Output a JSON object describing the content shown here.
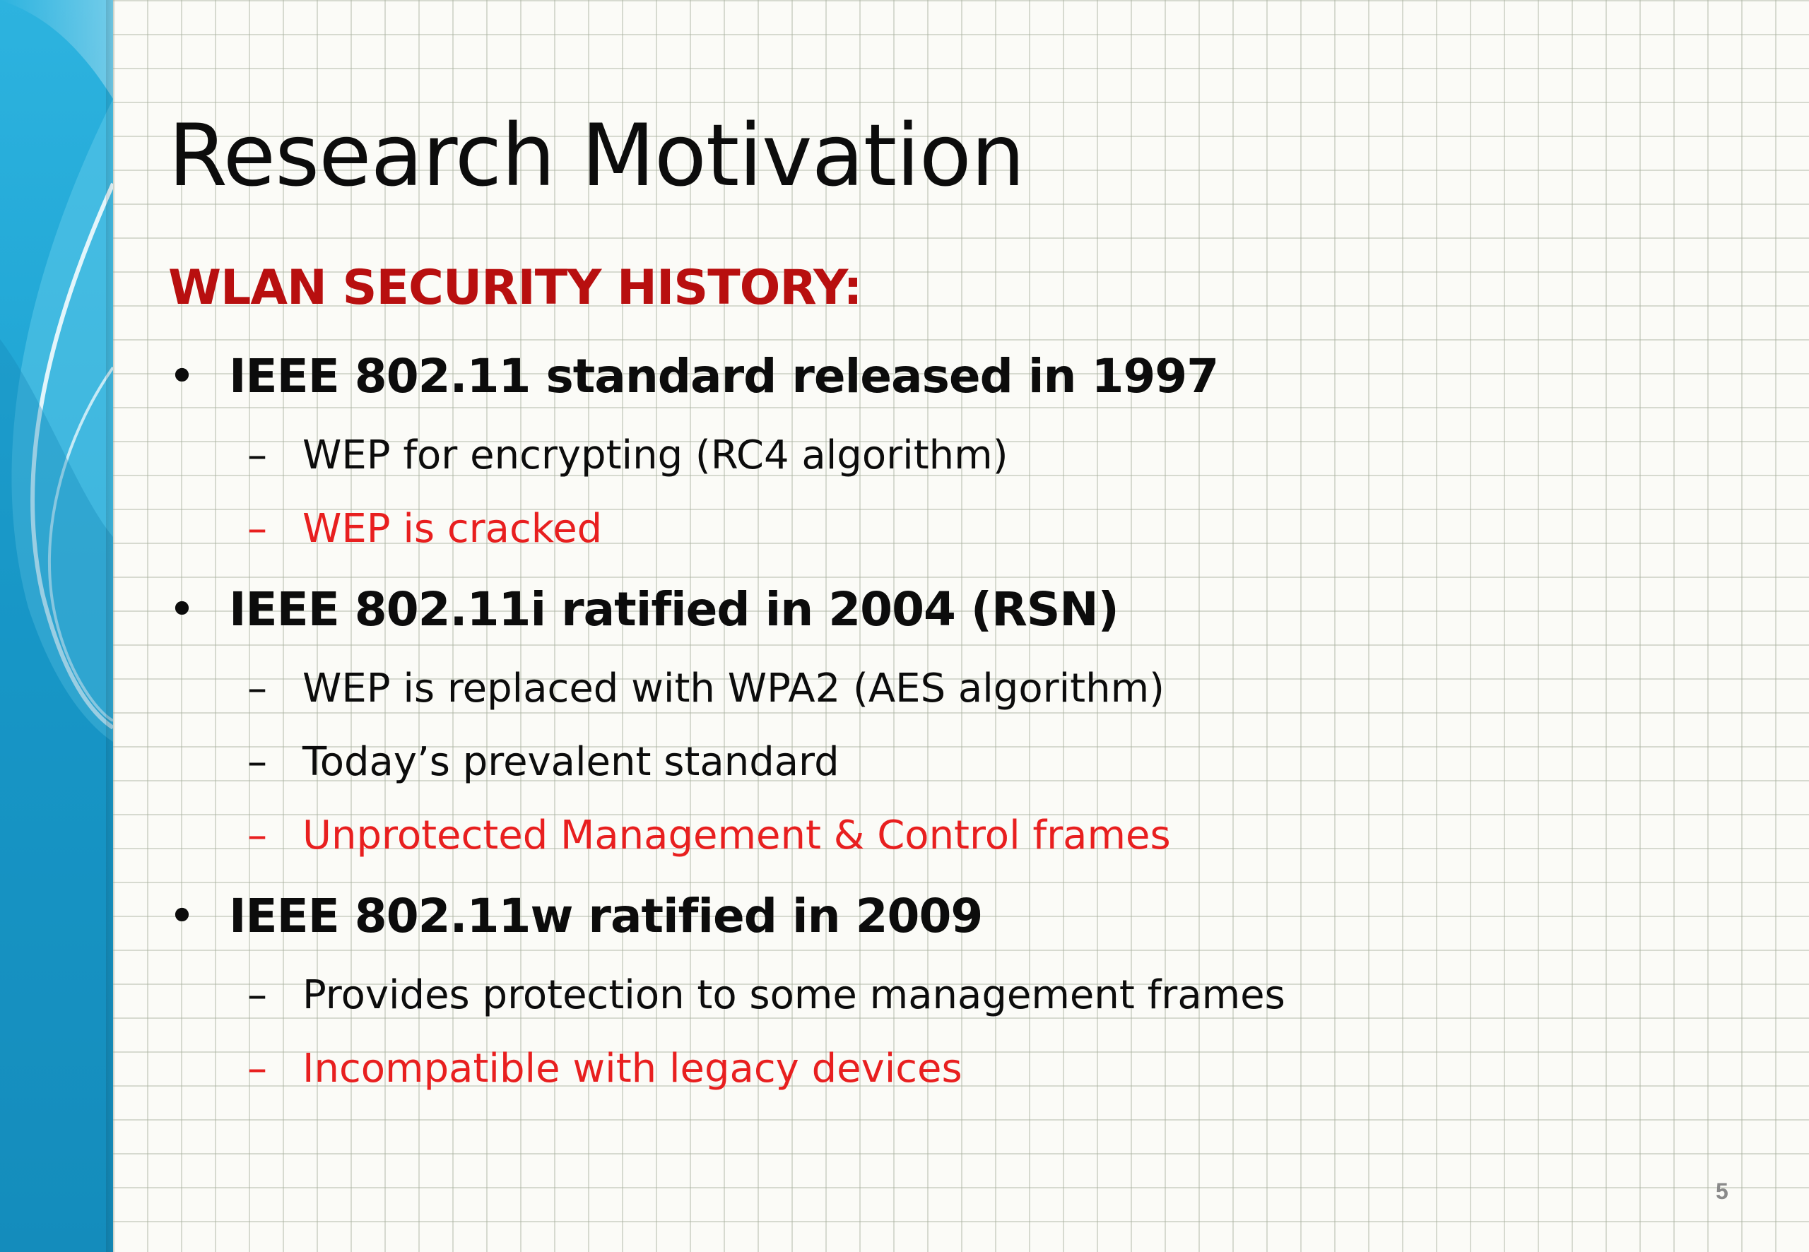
{
  "slide": {
    "title": "Research Motivation",
    "subtitle": "WLAN SECURITY HISTORY:",
    "bullet_symbol": "•",
    "dash_symbol": "–",
    "sections": [
      {
        "heading": "IEEE 802.11 standard  released in 1997",
        "items": [
          {
            "text": "WEP for encrypting (RC4 algorithm)",
            "color": "#0c0c0c"
          },
          {
            "text": "WEP is cracked",
            "color": "#e81f1f"
          }
        ]
      },
      {
        "heading": "IEEE 802.11i ratified in 2004 (RSN)",
        "items": [
          {
            "text": "WEP is replaced with WPA2 (AES algorithm)",
            "color": "#0c0c0c"
          },
          {
            "text": "Today’s prevalent standard",
            "color": "#0c0c0c"
          },
          {
            "text": "Unprotected Management & Control frames",
            "color": "#e81f1f"
          }
        ]
      },
      {
        "heading": "IEEE 802.11w ratified in 2009",
        "items": [
          {
            "text": "Provides protection to some management frames",
            "color": "#0c0c0c"
          },
          {
            "text": "Incompatible with legacy devices",
            "color": "#e81f1f"
          }
        ]
      }
    ],
    "page_number": "5"
  },
  "colors": {
    "accent_red": "#b80f0f",
    "highlight_red": "#e81f1f",
    "band_blue": "#1aa3d4"
  }
}
